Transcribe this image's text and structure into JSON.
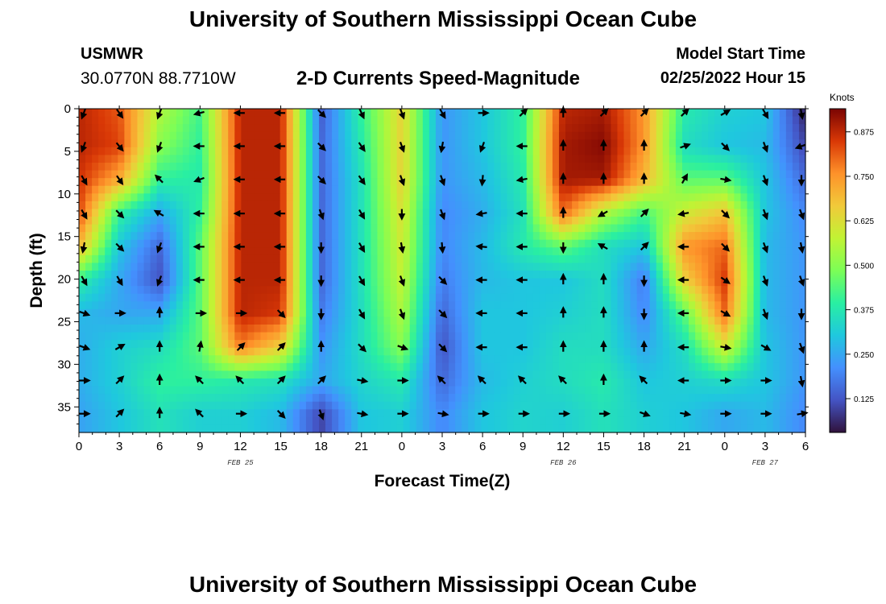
{
  "header": {
    "title": "University of Southern Mississippi Ocean Cube",
    "station": "USMWR",
    "coordinates": "30.0770N  88.7710W",
    "subtitle": "2-D Currents Speed-Magnitude",
    "model_start_label": "Model Start Time",
    "model_start_value": "02/25/2022 Hour 15"
  },
  "footer": {
    "title": "University of Southern Mississippi Ocean Cube"
  },
  "colors": {
    "low": "#30123b",
    "high": "#7a0403",
    "arrow": "#000000"
  },
  "chart_data": {
    "type": "heatmap",
    "title": "2-D Currents Speed-Magnitude",
    "xlabel": "Forecast Time(Z)",
    "ylabel": "Depth (ft)",
    "x_range": [
      0,
      54
    ],
    "y_range": [
      0,
      38
    ],
    "x_ticks": [
      {
        "x": 0,
        "label": "0"
      },
      {
        "x": 3,
        "label": "3"
      },
      {
        "x": 6,
        "label": "6"
      },
      {
        "x": 9,
        "label": "9"
      },
      {
        "x": 12,
        "label": "12"
      },
      {
        "x": 15,
        "label": "15"
      },
      {
        "x": 18,
        "label": "18"
      },
      {
        "x": 21,
        "label": "21"
      },
      {
        "x": 24,
        "label": "0"
      },
      {
        "x": 27,
        "label": "3"
      },
      {
        "x": 30,
        "label": "6"
      },
      {
        "x": 33,
        "label": "9"
      },
      {
        "x": 36,
        "label": "12"
      },
      {
        "x": 39,
        "label": "15"
      },
      {
        "x": 42,
        "label": "18"
      },
      {
        "x": 45,
        "label": "21"
      },
      {
        "x": 48,
        "label": "0"
      },
      {
        "x": 51,
        "label": "3"
      },
      {
        "x": 54,
        "label": "6"
      }
    ],
    "date_labels": [
      {
        "x": 12,
        "label": "FEB 25"
      },
      {
        "x": 36,
        "label": "FEB 26"
      },
      {
        "x": 51,
        "label": "FEB 27"
      }
    ],
    "y_ticks": [
      0,
      5,
      10,
      15,
      20,
      25,
      30,
      35
    ],
    "colorbar": {
      "unit": "Knots",
      "min": 0.03,
      "max": 0.94,
      "ticks": [
        "0.125",
        "0.250",
        "0.375",
        "0.500",
        "0.625",
        "0.750",
        "0.875"
      ]
    },
    "depths": [
      0.5,
      4.4,
      8.3,
      12.3,
      16.2,
      20.1,
      24.0,
      28.0,
      31.9,
      35.8
    ],
    "times": [
      0,
      3,
      6,
      9,
      12,
      15,
      18,
      21,
      24,
      27,
      30,
      33,
      36,
      39,
      42,
      45,
      48,
      51,
      54
    ],
    "speed_knots": [
      [
        0.88,
        0.82,
        0.55,
        0.42,
        0.88,
        0.88,
        0.14,
        0.4,
        0.65,
        0.22,
        0.3,
        0.4,
        0.88,
        0.9,
        0.75,
        0.38,
        0.32,
        0.3,
        0.05
      ],
      [
        0.88,
        0.84,
        0.5,
        0.4,
        0.88,
        0.88,
        0.15,
        0.38,
        0.65,
        0.22,
        0.3,
        0.4,
        0.9,
        0.93,
        0.75,
        0.35,
        0.3,
        0.28,
        0.1
      ],
      [
        0.86,
        0.72,
        0.4,
        0.38,
        0.88,
        0.88,
        0.15,
        0.36,
        0.65,
        0.22,
        0.28,
        0.38,
        0.9,
        0.9,
        0.7,
        0.45,
        0.45,
        0.3,
        0.15
      ],
      [
        0.84,
        0.4,
        0.25,
        0.4,
        0.88,
        0.88,
        0.15,
        0.36,
        0.62,
        0.2,
        0.26,
        0.36,
        0.8,
        0.55,
        0.42,
        0.6,
        0.68,
        0.3,
        0.2
      ],
      [
        0.7,
        0.3,
        0.15,
        0.45,
        0.88,
        0.88,
        0.15,
        0.36,
        0.6,
        0.2,
        0.28,
        0.38,
        0.45,
        0.35,
        0.3,
        0.75,
        0.8,
        0.28,
        0.22
      ],
      [
        0.4,
        0.25,
        0.12,
        0.45,
        0.88,
        0.88,
        0.15,
        0.36,
        0.58,
        0.18,
        0.28,
        0.3,
        0.3,
        0.35,
        0.18,
        0.65,
        0.85,
        0.28,
        0.22
      ],
      [
        0.28,
        0.25,
        0.25,
        0.45,
        0.88,
        0.85,
        0.18,
        0.35,
        0.55,
        0.15,
        0.3,
        0.3,
        0.32,
        0.35,
        0.2,
        0.45,
        0.8,
        0.28,
        0.22
      ],
      [
        0.26,
        0.32,
        0.35,
        0.45,
        0.78,
        0.65,
        0.22,
        0.35,
        0.5,
        0.12,
        0.3,
        0.3,
        0.35,
        0.35,
        0.25,
        0.35,
        0.6,
        0.3,
        0.22
      ],
      [
        0.26,
        0.32,
        0.4,
        0.4,
        0.38,
        0.36,
        0.25,
        0.33,
        0.38,
        0.15,
        0.28,
        0.32,
        0.35,
        0.38,
        0.3,
        0.32,
        0.35,
        0.3,
        0.22
      ],
      [
        0.24,
        0.3,
        0.36,
        0.32,
        0.32,
        0.28,
        0.1,
        0.3,
        0.32,
        0.2,
        0.3,
        0.33,
        0.32,
        0.36,
        0.32,
        0.3,
        0.25,
        0.28,
        0.2
      ]
    ],
    "direction_deg": [
      [
        200,
        145,
        200,
        255,
        270,
        270,
        135,
        155,
        160,
        150,
        90,
        45,
        0,
        45,
        45,
        45,
        60,
        150,
        170
      ],
      [
        200,
        140,
        200,
        270,
        270,
        270,
        135,
        145,
        160,
        190,
        200,
        270,
        0,
        0,
        0,
        70,
        135,
        160,
        250
      ],
      [
        150,
        145,
        315,
        250,
        270,
        270,
        135,
        145,
        160,
        160,
        185,
        260,
        0,
        0,
        0,
        30,
        100,
        160,
        180
      ],
      [
        150,
        135,
        300,
        270,
        270,
        270,
        160,
        150,
        180,
        160,
        260,
        270,
        0,
        240,
        45,
        260,
        135,
        160,
        160
      ],
      [
        190,
        135,
        200,
        270,
        270,
        270,
        180,
        150,
        170,
        175,
        275,
        270,
        180,
        300,
        45,
        270,
        135,
        160,
        170
      ],
      [
        150,
        150,
        200,
        270,
        270,
        270,
        180,
        150,
        160,
        135,
        270,
        270,
        0,
        0,
        180,
        270,
        125,
        160,
        160
      ],
      [
        110,
        90,
        0,
        90,
        90,
        135,
        180,
        150,
        160,
        135,
        270,
        270,
        0,
        0,
        180,
        270,
        120,
        160,
        180
      ],
      [
        110,
        60,
        0,
        10,
        45,
        45,
        0,
        135,
        110,
        135,
        270,
        270,
        0,
        0,
        0,
        270,
        100,
        120,
        160
      ],
      [
        90,
        45,
        0,
        315,
        315,
        45,
        45,
        100,
        90,
        315,
        315,
        315,
        315,
        0,
        315,
        270,
        90,
        90,
        170
      ],
      [
        90,
        45,
        0,
        315,
        90,
        135,
        160,
        100,
        90,
        100,
        90,
        90,
        90,
        90,
        110,
        100,
        90,
        90,
        80
      ]
    ]
  }
}
